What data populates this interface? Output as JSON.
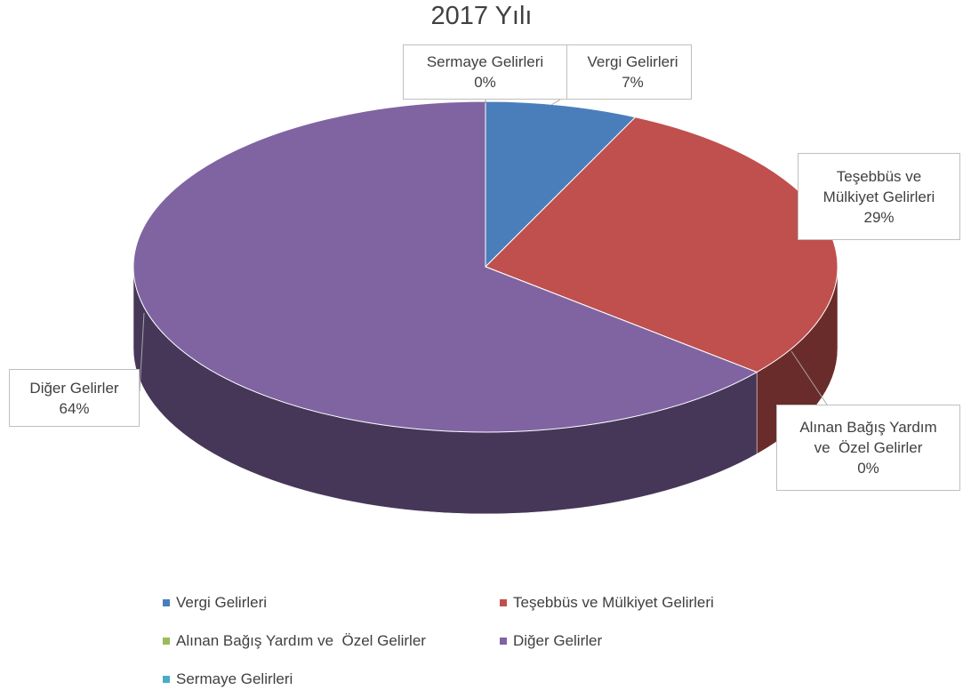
{
  "chart_data": {
    "type": "pie",
    "title": "2017 Yılı",
    "categories": [
      "Vergi Gelirleri",
      "Teşebbüs ve Mülkiyet Gelirleri",
      "Alınan Bağış Yardım ve  Özel Gelirler",
      "Diğer Gelirler",
      "Sermaye Gelirleri"
    ],
    "values": [
      7,
      29,
      0,
      64,
      0
    ],
    "value_labels": [
      "7%",
      "29%",
      "0%",
      "64%",
      "0%"
    ],
    "colors": [
      "#4a7ebb",
      "#c0504d",
      "#9bbb59",
      "#8064a2",
      "#4bacc6"
    ],
    "legend": "bottom"
  }
}
